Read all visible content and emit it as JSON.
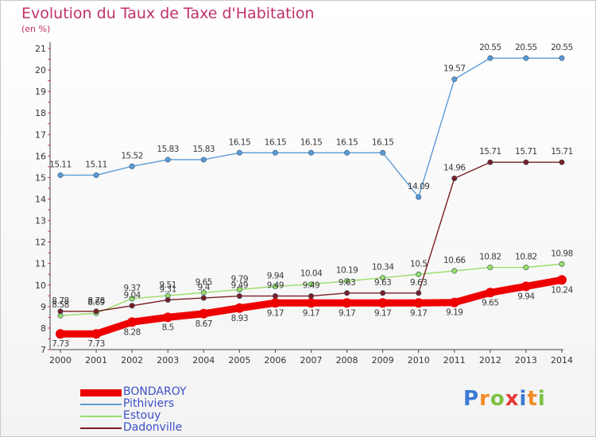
{
  "header": {
    "title": "Evolution du Taux de Taxe d'Habitation",
    "subtitle": "(en %)"
  },
  "logo": {
    "text": "Proxiti",
    "letters": [
      {
        "ch": "P",
        "color": "#3a7bd5"
      },
      {
        "ch": "r",
        "color": "#f28c28"
      },
      {
        "ch": "o",
        "color": "#7cc243"
      },
      {
        "ch": "x",
        "color": "#e53935"
      },
      {
        "ch": "i",
        "color": "#3a7bd5"
      },
      {
        "ch": "t",
        "color": "#f28c28"
      },
      {
        "ch": "i",
        "color": "#7cc243"
      }
    ]
  },
  "chart_data": {
    "type": "line",
    "title": "Evolution du Taux de Taxe d'Habitation",
    "subtitle": "(en %)",
    "xlabel": "",
    "ylabel": "",
    "x": [
      "2000",
      "2001",
      "2002",
      "2003",
      "2004",
      "2005",
      "2006",
      "2007",
      "2008",
      "2009",
      "2010",
      "2011",
      "2012",
      "2013",
      "2014"
    ],
    "ylim": [
      7,
      21
    ],
    "yticks": [
      "7",
      "8",
      "9",
      "10",
      "11",
      "12",
      "13",
      "14",
      "15",
      "16",
      "17",
      "18",
      "19",
      "20",
      "21"
    ],
    "grid": false,
    "legend_position": "bottom-left",
    "series": [
      {
        "name": "BONDAROY",
        "color": "#ee0000",
        "values": [
          7.73,
          7.73,
          8.28,
          8.5,
          8.67,
          8.93,
          9.17,
          9.17,
          9.17,
          9.17,
          9.17,
          9.19,
          9.65,
          9.94,
          10.24
        ],
        "labels": [
          "7.73",
          "7.73",
          "8.28",
          "8.5",
          "8.67",
          "8.93",
          "9.17",
          "9.17",
          "9.17",
          "9.17",
          "9.17",
          "9.19",
          "9.65",
          "9.94",
          "10.24"
        ]
      },
      {
        "name": "Pithiviers",
        "color": "#5b9bd5",
        "values": [
          15.11,
          15.11,
          15.52,
          15.83,
          15.83,
          16.15,
          16.15,
          16.15,
          16.15,
          16.15,
          14.09,
          19.57,
          20.55,
          20.55,
          20.55
        ],
        "labels": [
          "15.11",
          "15.11",
          "15.52",
          "15.83",
          "15.83",
          "16.15",
          "16.15",
          "16.15",
          "16.15",
          "16.15",
          "14.09",
          "19.57",
          "20.55",
          "20.55",
          "20.55"
        ]
      },
      {
        "name": "Estouy",
        "color": "#99dd66",
        "values": [
          8.58,
          8.69,
          9.37,
          9.51,
          9.65,
          9.79,
          9.94,
          10.04,
          10.19,
          10.34,
          10.5,
          10.66,
          10.82,
          10.82,
          10.98
        ],
        "labels": [
          "8.58",
          "8.69",
          "9.37",
          "9.51",
          "9.65",
          "9.79",
          "9.94",
          "10.04",
          "10.19",
          "10.34",
          "10.5",
          "10.66",
          "10.82",
          "10.82",
          "10.98"
        ]
      },
      {
        "name": "Dadonville",
        "color": "#7a1e24",
        "values": [
          8.78,
          8.78,
          9.04,
          9.31,
          9.4,
          9.49,
          9.49,
          9.49,
          9.63,
          9.63,
          9.63,
          14.96,
          15.71,
          15.71,
          15.71
        ],
        "labels": [
          "8.78",
          "8.78",
          "9.04",
          "9.31",
          "9.4",
          "9.49",
          "9.49",
          "9.49",
          "9.63",
          "9.63",
          "9.63",
          "14.96",
          "15.71",
          "15.71",
          "15.71"
        ]
      }
    ]
  }
}
